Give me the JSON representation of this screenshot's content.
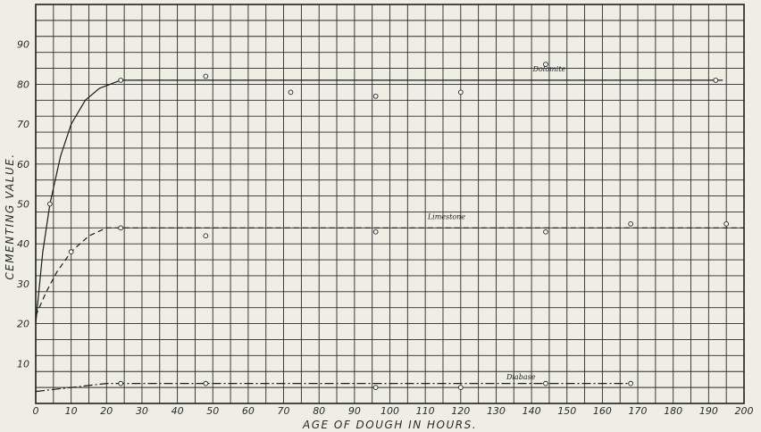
{
  "chart_data": {
    "type": "line",
    "title": "",
    "xlabel": "AGE OF DOUGH IN HOURS.",
    "ylabel": "CEMENTING VALUE.",
    "xlim": [
      0,
      200
    ],
    "ylim": [
      0,
      100
    ],
    "x_ticks": [
      "0",
      "10",
      "20",
      "30",
      "40",
      "50",
      "60",
      "70",
      "80",
      "90",
      "100",
      "110",
      "120",
      "130",
      "140",
      "150",
      "160",
      "170",
      "180",
      "190",
      "200"
    ],
    "y_ticks": [
      "10",
      "20",
      "30",
      "40",
      "50",
      "60",
      "70",
      "80",
      "90"
    ],
    "grid": true,
    "series": [
      {
        "name": "Dolomite",
        "style": "solid",
        "curve": [
          [
            0,
            20
          ],
          [
            2,
            38
          ],
          [
            4,
            50
          ],
          [
            7,
            62
          ],
          [
            10,
            70
          ],
          [
            14,
            76
          ],
          [
            18,
            79
          ],
          [
            24,
            81
          ],
          [
            60,
            81
          ],
          [
            120,
            81
          ],
          [
            194,
            81
          ]
        ],
        "points": [
          [
            4,
            50
          ],
          [
            24,
            81
          ],
          [
            48,
            82
          ],
          [
            72,
            78
          ],
          [
            96,
            77
          ],
          [
            120,
            78
          ],
          [
            144,
            85
          ],
          [
            192,
            81
          ]
        ]
      },
      {
        "name": "Limestone",
        "style": "dashed",
        "curve": [
          [
            0,
            22
          ],
          [
            3,
            28
          ],
          [
            6,
            33
          ],
          [
            10,
            38
          ],
          [
            15,
            42
          ],
          [
            20,
            44
          ],
          [
            24,
            44
          ],
          [
            100,
            44
          ],
          [
            200,
            44
          ]
        ],
        "points": [
          [
            10,
            38
          ],
          [
            24,
            44
          ],
          [
            48,
            42
          ],
          [
            96,
            43
          ],
          [
            144,
            43
          ],
          [
            168,
            45
          ],
          [
            195,
            45
          ]
        ]
      },
      {
        "name": "Diabase",
        "style": "dash-dot",
        "curve": [
          [
            0,
            3
          ],
          [
            10,
            4
          ],
          [
            20,
            5
          ],
          [
            24,
            5
          ],
          [
            100,
            5
          ],
          [
            168,
            5
          ]
        ],
        "points": [
          [
            24,
            5
          ],
          [
            48,
            5
          ],
          [
            96,
            4
          ],
          [
            120,
            4
          ],
          [
            144,
            5
          ],
          [
            168,
            5
          ]
        ]
      }
    ]
  }
}
